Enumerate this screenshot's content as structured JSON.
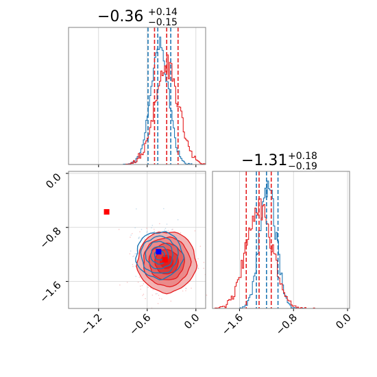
{
  "chart_data": {
    "type": "corner",
    "colors": {
      "red": "#e41a1c",
      "blue": "#1f77b4",
      "grid": "#d0d0d0",
      "frame": "#808080",
      "marker_blue": "#0000ff",
      "marker_red": "#ff0000"
    },
    "grid": true,
    "titles": [
      {
        "param": 1,
        "main": "−0.36",
        "sup": "+0.14",
        "sub": "−0.15"
      },
      {
        "param": 2,
        "main": "−1.31",
        "sup": "+0.18",
        "sub": "−0.19"
      }
    ],
    "axes": {
      "p1": {
        "range": [
          -1.57,
          0.12
        ],
        "ticks": [
          -1.2,
          -0.6,
          0.0
        ],
        "tick_labels": [
          "−1.2",
          "−0.6",
          "0.0"
        ]
      },
      "p2": {
        "range": [
          -2.0,
          0.03
        ],
        "ticks": [
          -1.6,
          -0.8,
          0.0
        ],
        "tick_labels": [
          "−1.6",
          "−0.8",
          "0.0"
        ]
      }
    },
    "panels": {
      "p1_hist": {
        "quantiles_red": [
          -0.51,
          -0.36,
          -0.22
        ],
        "quantiles_blue": [
          -0.59,
          -0.47,
          -0.31
        ],
        "hist_red": {
          "center": -0.36,
          "sigma": 0.145
        },
        "hist_blue": {
          "center": -0.45,
          "sigma": 0.11
        }
      },
      "p2_hist": {
        "quantiles_red": [
          -1.5,
          -1.31,
          -1.13
        ],
        "quantiles_blue": [
          -1.35,
          -1.2,
          -1.03
        ],
        "hist_red": {
          "center": -1.31,
          "sigma": 0.19
        },
        "hist_blue": {
          "center": -1.18,
          "sigma": 0.12
        }
      },
      "joint": {
        "red_center": [
          -0.36,
          -1.31
        ],
        "red_sigma": [
          0.145,
          0.19
        ],
        "blue_center": [
          -0.45,
          -1.21
        ],
        "blue_sigma": [
          0.12,
          0.16
        ],
        "markers": [
          {
            "name": "red-marker-1",
            "x": -1.1,
            "y": -0.57,
            "color": "#ff0000"
          },
          {
            "name": "red-marker-2",
            "x": -0.38,
            "y": -1.28,
            "color": "#ff0000"
          },
          {
            "name": "blue-marker",
            "x": -0.46,
            "y": -1.16,
            "color": "#0000ff"
          }
        ]
      }
    }
  }
}
